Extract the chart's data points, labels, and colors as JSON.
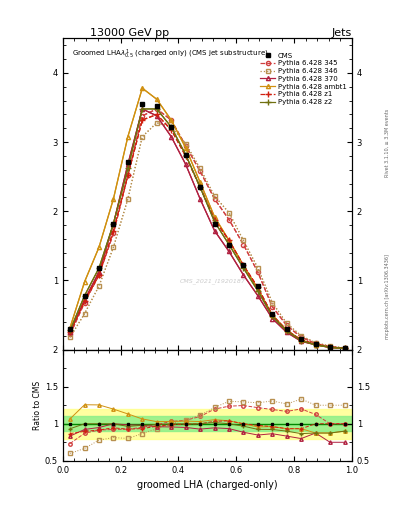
{
  "title_top": "13000 GeV pp",
  "title_right": "Jets",
  "plot_title": "Groomed LHA$\\lambda^{1}_{0.5}$ (charged only) (CMS jet substructure)",
  "xlabel": "groomed LHA (charged-only)",
  "watermark": "CMS_2021_I1920187",
  "rivet_label": "Rivet 3.1.10, ≥ 3.3M events",
  "arxiv_label": "mcplots.cern.ch [arXiv:1306.3436]",
  "ratio_ylabel": "Ratio to CMS",
  "xpts": [
    0.025,
    0.075,
    0.125,
    0.175,
    0.225,
    0.275,
    0.325,
    0.375,
    0.425,
    0.475,
    0.525,
    0.575,
    0.625,
    0.675,
    0.725,
    0.775,
    0.825,
    0.875,
    0.925,
    0.975
  ],
  "cms_y": [
    0.3,
    0.78,
    1.18,
    1.82,
    2.72,
    3.55,
    3.52,
    3.22,
    2.82,
    2.35,
    1.82,
    1.52,
    1.22,
    0.92,
    0.52,
    0.3,
    0.15,
    0.08,
    0.04,
    0.02
  ],
  "py345_y": [
    0.22,
    0.68,
    1.08,
    1.68,
    2.52,
    3.38,
    3.48,
    3.32,
    2.95,
    2.58,
    2.18,
    1.88,
    1.52,
    1.12,
    0.62,
    0.35,
    0.18,
    0.09,
    0.04,
    0.02
  ],
  "py346_y": [
    0.18,
    0.52,
    0.92,
    1.48,
    2.18,
    3.08,
    3.28,
    3.22,
    2.98,
    2.62,
    2.22,
    1.98,
    1.58,
    1.18,
    0.68,
    0.38,
    0.2,
    0.1,
    0.05,
    0.025
  ],
  "py370_y": [
    0.25,
    0.72,
    1.12,
    1.82,
    2.68,
    3.48,
    3.38,
    3.08,
    2.68,
    2.18,
    1.72,
    1.42,
    1.08,
    0.78,
    0.45,
    0.25,
    0.12,
    0.07,
    0.03,
    0.015
  ],
  "pyambt1_y": [
    0.32,
    0.98,
    1.48,
    2.18,
    3.08,
    3.78,
    3.62,
    3.32,
    2.92,
    2.42,
    1.92,
    1.58,
    1.22,
    0.88,
    0.5,
    0.28,
    0.14,
    0.07,
    0.035,
    0.018
  ],
  "pyz1_y": [
    0.26,
    0.7,
    1.08,
    1.72,
    2.52,
    3.32,
    3.4,
    3.18,
    2.8,
    2.35,
    1.88,
    1.58,
    1.22,
    0.9,
    0.5,
    0.28,
    0.14,
    0.08,
    0.04,
    0.02
  ],
  "pyz2_y": [
    0.28,
    0.78,
    1.18,
    1.82,
    2.62,
    3.48,
    3.48,
    3.22,
    2.82,
    2.35,
    1.85,
    1.52,
    1.18,
    0.85,
    0.48,
    0.27,
    0.13,
    0.07,
    0.035,
    0.018
  ],
  "ylim": [
    0,
    4.5
  ],
  "yticks": [
    1,
    2,
    3,
    4
  ],
  "ratio_ylim": [
    0.5,
    2.0
  ],
  "ratio_yticks": [
    0.5,
    1.0,
    1.5,
    2.0
  ],
  "color_345": "#d04040",
  "color_346": "#b89050",
  "color_370": "#b02040",
  "color_ambt1": "#d09010",
  "color_z1": "#d02010",
  "color_z2": "#707010",
  "color_cms": "#000000",
  "bg_color": "#ffffff",
  "green_band_inner": [
    0.9,
    1.1
  ],
  "yellow_band_outer": [
    0.8,
    1.2
  ]
}
